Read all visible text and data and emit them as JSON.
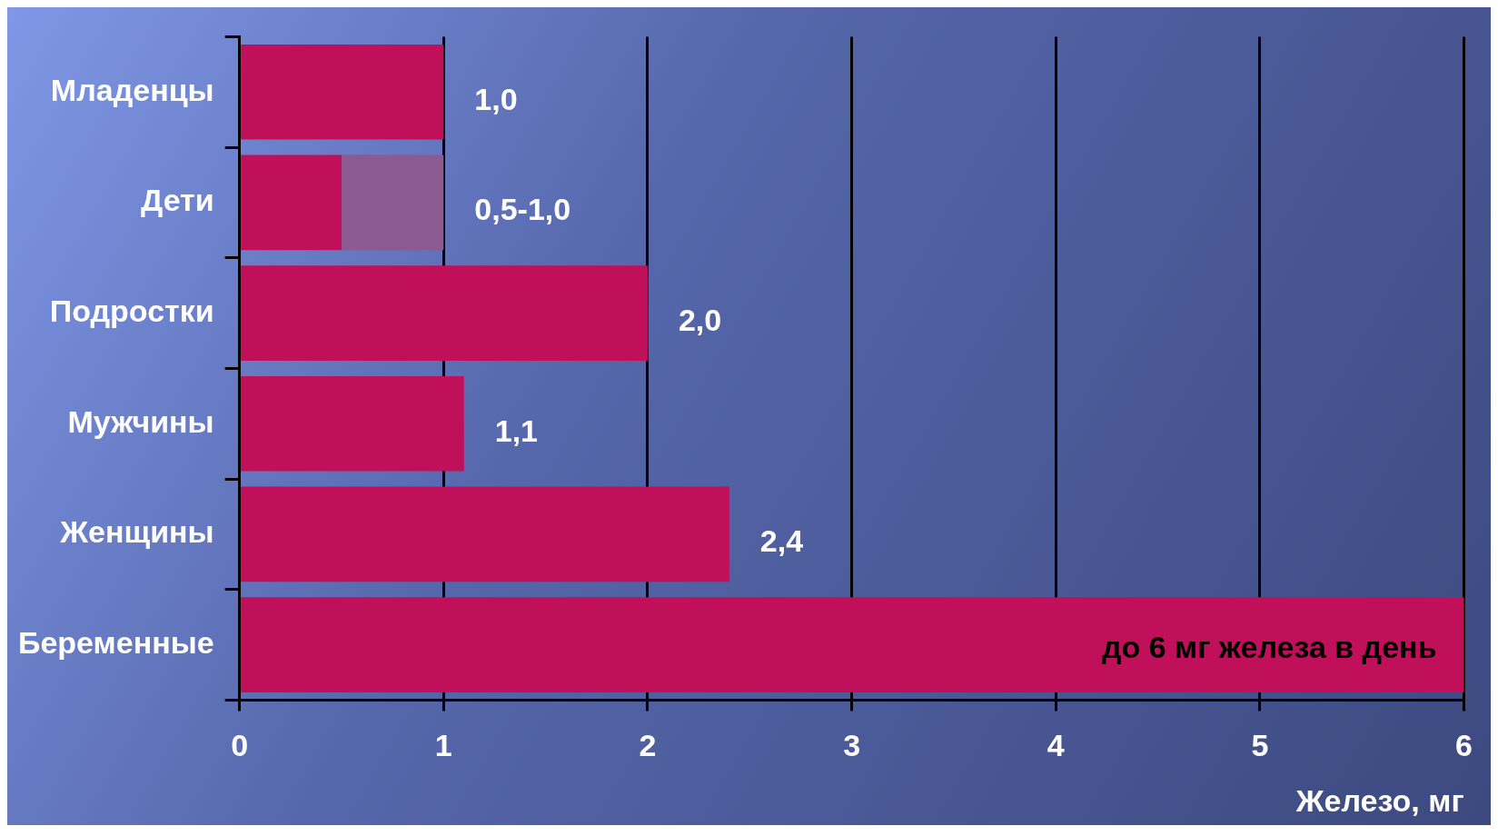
{
  "chart_data": {
    "type": "bar",
    "orientation": "horizontal",
    "stacked": true,
    "xlabel": "Железо, мг",
    "categories": [
      "Младенцы",
      "Дети",
      "Подростки",
      "Мужчины",
      "Женщины",
      "Беременные"
    ],
    "series": [
      {
        "color": "#c0105a",
        "values": [
          1.0,
          0.5,
          2.0,
          1.1,
          2.4,
          6
        ],
        "value_labels": [
          "1,0",
          null,
          "2,0",
          "1,1",
          "2,4",
          null
        ]
      },
      {
        "color": "#8a5a90",
        "values": [
          null,
          0.5,
          null,
          null,
          null,
          null
        ],
        "value_labels": [
          null,
          "0,5-1,0",
          null,
          null,
          null,
          null
        ]
      }
    ],
    "xlim": [
      0,
      6
    ],
    "xticks": [
      0,
      1,
      2,
      3,
      4,
      5,
      6
    ],
    "grid": "x",
    "legend": false,
    "annotations": [
      {
        "text": "до 6 мг железа в день",
        "x": 6,
        "y": "Беременные"
      }
    ]
  }
}
